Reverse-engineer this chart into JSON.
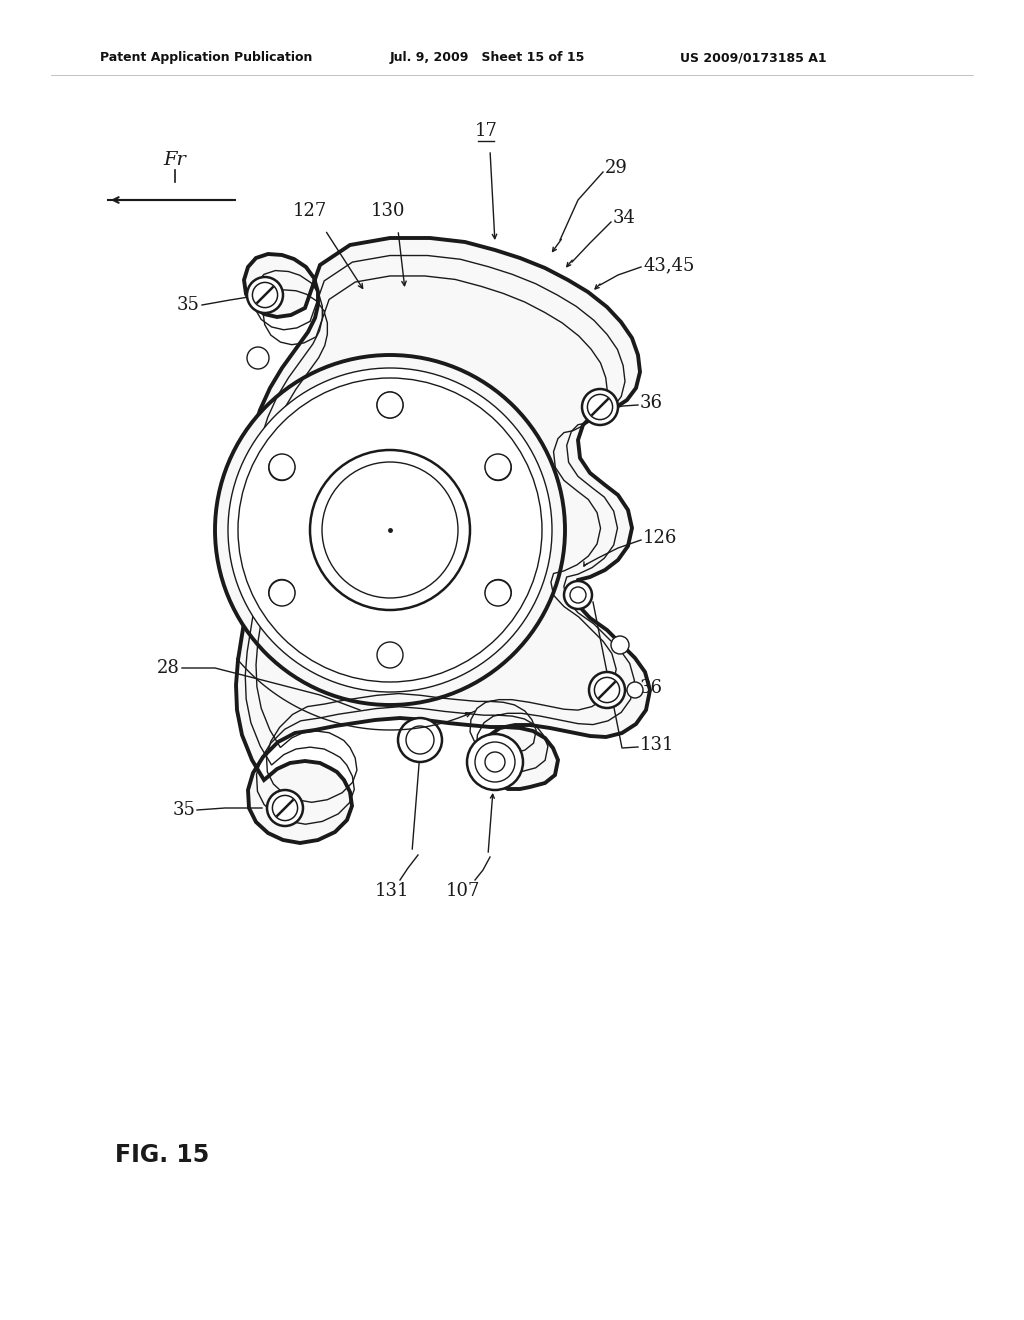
{
  "background_color": "#ffffff",
  "line_color": "#1a1a1a",
  "header_left": "Patent Application Publication",
  "header_mid": "Jul. 9, 2009   Sheet 15 of 15",
  "header_right": "US 2009/0173185 A1",
  "figure_label": "FIG. 15"
}
